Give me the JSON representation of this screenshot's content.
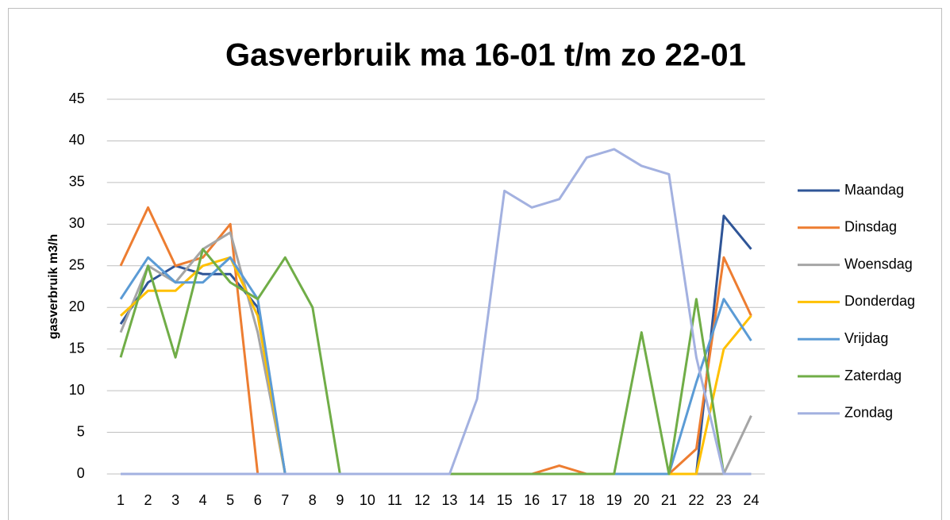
{
  "chart_data": {
    "type": "line",
    "title": "Gasverbruik ma 16-01 t/m zo 22-01",
    "y_label": "gasverbruik m3/h",
    "categories": [
      "1",
      "2",
      "3",
      "4",
      "5",
      "6",
      "7",
      "8",
      "9",
      "10",
      "11",
      "12",
      "13",
      "14",
      "15",
      "16",
      "17",
      "18",
      "19",
      "20",
      "21",
      "22",
      "23",
      "24"
    ],
    "series": [
      {
        "name": "Maandag",
        "color": "#2f5597",
        "values": [
          18,
          23,
          25,
          24,
          24,
          20,
          0,
          0,
          0,
          0,
          0,
          0,
          0,
          0,
          0,
          0,
          0,
          0,
          0,
          0,
          0,
          0,
          31,
          27
        ]
      },
      {
        "name": "Dinsdag",
        "color": "#ed7d31",
        "values": [
          25,
          32,
          25,
          26,
          30,
          0,
          0,
          0,
          0,
          0,
          0,
          0,
          0,
          0,
          0,
          0,
          1,
          0,
          0,
          0,
          0,
          3,
          26,
          19
        ]
      },
      {
        "name": "Woensdag",
        "color": "#a5a5a5",
        "values": [
          17,
          25,
          23,
          27,
          29,
          17,
          0,
          0,
          0,
          0,
          0,
          0,
          0,
          0,
          0,
          0,
          0,
          0,
          0,
          0,
          0,
          0,
          0,
          7
        ]
      },
      {
        "name": "Donderdag",
        "color": "#ffc000",
        "values": [
          19,
          22,
          22,
          25,
          26,
          19,
          0,
          0,
          0,
          0,
          0,
          0,
          0,
          0,
          0,
          0,
          0,
          0,
          0,
          0,
          0,
          0,
          15,
          19
        ]
      },
      {
        "name": "Vrijdag",
        "color": "#5b9bd5",
        "values": [
          21,
          26,
          23,
          23,
          26,
          21,
          0,
          0,
          0,
          0,
          0,
          0,
          0,
          0,
          0,
          0,
          0,
          0,
          0,
          0,
          0,
          11,
          21,
          16
        ]
      },
      {
        "name": "Zaterdag",
        "color": "#70ad47",
        "values": [
          14,
          25,
          14,
          27,
          23,
          21,
          26,
          20,
          0,
          0,
          0,
          0,
          0,
          0,
          0,
          0,
          0,
          0,
          0,
          17,
          0,
          21,
          0,
          0
        ]
      },
      {
        "name": "Zondag",
        "color": "#a3b1e0",
        "values": [
          0,
          0,
          0,
          0,
          0,
          0,
          0,
          0,
          0,
          0,
          0,
          0,
          0,
          9,
          34,
          32,
          33,
          38,
          39,
          37,
          36,
          14,
          0,
          0
        ]
      }
    ],
    "ylim": [
      0,
      45
    ],
    "yticks": [
      0,
      5,
      10,
      15,
      20,
      25,
      30,
      35,
      40,
      45
    ],
    "grid": true,
    "legend": "right"
  }
}
